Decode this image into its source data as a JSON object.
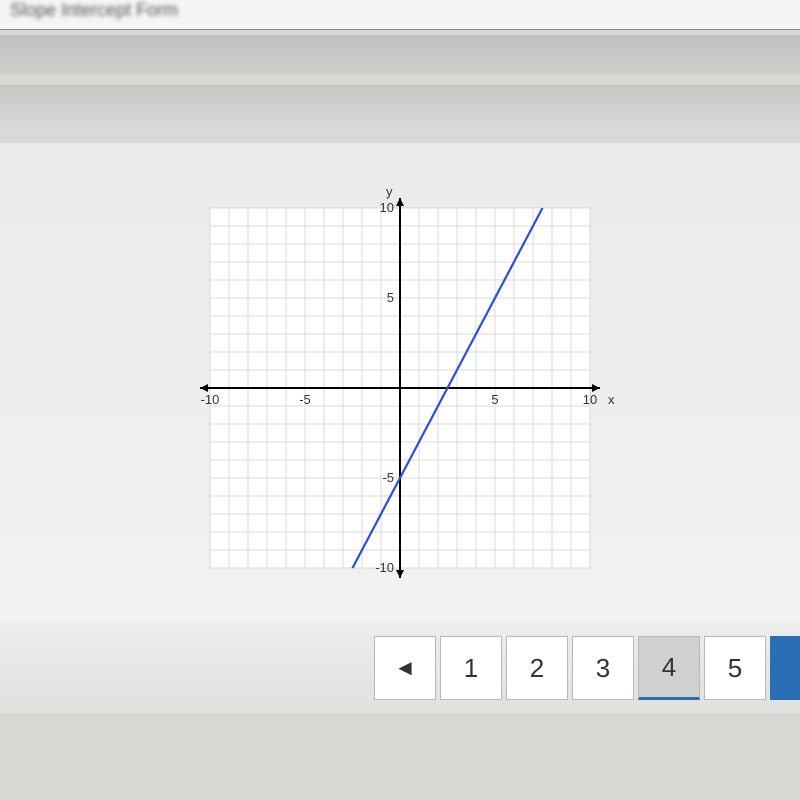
{
  "header": {
    "blurred_text": "Slope Intercept Form"
  },
  "chart": {
    "type": "line",
    "xlim": [
      -10,
      10
    ],
    "ylim": [
      -10,
      10
    ],
    "xtick_step": 5,
    "ytick_step": 5,
    "grid_step": 1,
    "grid_color": "#d8d8d8",
    "axis_color": "#000000",
    "tick_font_size": 13,
    "axis_label_font_size": 13,
    "x_label": "x",
    "y_label": "y",
    "background": "#ffffff",
    "line": {
      "color": "#2b4de0",
      "width": 2.2,
      "points": [
        {
          "x": -2.5,
          "y": -10
        },
        {
          "x": 7.5,
          "y": 10
        }
      ]
    },
    "arrow_size": 8
  },
  "pagination": {
    "prev_symbol": "◄",
    "pages": [
      "1",
      "2",
      "3",
      "4",
      "5"
    ],
    "active_index": 3
  }
}
